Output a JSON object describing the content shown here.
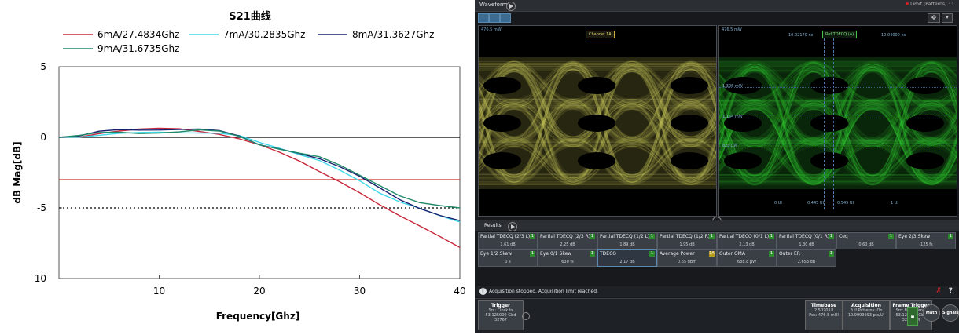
{
  "chart_data": {
    "type": "line",
    "title": "S21曲线",
    "xlabel": "Frequency[Ghz]",
    "ylabel": "dB Mag[dB]",
    "xlim": [
      0,
      40
    ],
    "ylim": [
      -10,
      5
    ],
    "x_ticks": [
      "10",
      "20",
      "30",
      "40"
    ],
    "y_ticks": [
      "5",
      "0",
      "-5",
      "-10"
    ],
    "ref_lines": [
      {
        "y": 0,
        "style": "solid",
        "color": "#000000"
      },
      {
        "y": -3,
        "style": "solid",
        "color": "#d03030"
      },
      {
        "y": -5,
        "style": "dotted",
        "color": "#000000"
      }
    ],
    "legend_position": "top",
    "series": [
      {
        "name": "6mA/27.4834Ghz",
        "color": "#c8283c",
        "x": [
          0,
          2,
          4,
          6,
          8,
          10,
          12,
          14,
          16,
          18,
          20,
          22,
          24,
          26,
          28,
          30,
          32,
          34,
          36,
          38,
          40
        ],
        "y": [
          0,
          0.05,
          0.3,
          0.45,
          0.55,
          0.6,
          0.6,
          0.45,
          0.25,
          -0.1,
          -0.55,
          -1.1,
          -1.7,
          -2.4,
          -3.1,
          -3.9,
          -4.8,
          -5.6,
          -6.3,
          -7.0,
          -7.8
        ]
      },
      {
        "name": "7mA/30.2835Ghz",
        "color": "#40d8e8",
        "x": [
          0,
          2,
          4,
          6,
          8,
          10,
          12,
          14,
          16,
          18,
          20,
          22,
          24,
          26,
          28,
          30,
          32,
          34,
          36,
          38,
          40
        ],
        "y": [
          0,
          0.05,
          0.15,
          0.25,
          0.3,
          0.35,
          0.35,
          0.35,
          0.3,
          0.1,
          -0.4,
          -0.8,
          -1.2,
          -1.6,
          -2.3,
          -3.1,
          -4.0,
          -4.6,
          -5.0,
          -5.5,
          -6.0
        ]
      },
      {
        "name": "8mA/31.3627Ghz",
        "color": "#1a1f6e",
        "x": [
          0,
          2,
          4,
          6,
          8,
          10,
          12,
          14,
          16,
          18,
          20,
          22,
          24,
          26,
          28,
          30,
          32,
          34,
          36,
          38,
          40
        ],
        "y": [
          0,
          0.1,
          0.4,
          0.5,
          0.5,
          0.55,
          0.6,
          0.6,
          0.45,
          0.05,
          -0.55,
          -0.8,
          -1.1,
          -1.5,
          -2.1,
          -2.8,
          -3.6,
          -4.4,
          -5.0,
          -5.5,
          -5.9
        ]
      },
      {
        "name": "9mA/31.6735Ghz",
        "color": "#1f8a6a",
        "x": [
          0,
          2,
          4,
          6,
          8,
          10,
          12,
          14,
          16,
          18,
          20,
          22,
          24,
          26,
          28,
          30,
          32,
          34,
          36,
          38,
          40
        ],
        "y": [
          0,
          0.1,
          0.3,
          0.35,
          0.3,
          0.35,
          0.4,
          0.5,
          0.4,
          0.05,
          -0.5,
          -0.8,
          -1.1,
          -1.4,
          -2.0,
          -2.7,
          -3.4,
          -4.1,
          -4.6,
          -4.85,
          -5.0
        ]
      }
    ]
  },
  "scope": {
    "window_title": "Waveform",
    "limit_status": "Limit (Patterns) : 1",
    "left_pane": {
      "scale_label": "476.5 mW",
      "channel_label": "Channel 1A"
    },
    "right_pane": {
      "scale_label": "476.5 mW",
      "marker_label": "Ref TDECQ (A)",
      "time_a": "10.02170 ns",
      "time_b": "10.04000 ns",
      "level_1": "1.306 mW",
      "level_2": "1.154 mW",
      "level_3": "820 µW",
      "axis_left": "0 UI",
      "axis_m1": "0.445 UI",
      "axis_m2": "0.545 UI",
      "axis_right": "1 UI"
    },
    "results_label": "Results",
    "results": [
      {
        "name": "Partial TDECQ (2/3 L)",
        "value": "1.61 dB",
        "badge": "1"
      },
      {
        "name": "Partial TDECQ (2/3 R)",
        "value": "2.25 dB",
        "badge": "1"
      },
      {
        "name": "Partial TDECQ (1/2 L)",
        "value": "1.89 dB",
        "badge": "1"
      },
      {
        "name": "Partial TDECQ (1/2 R)",
        "value": "1.95 dB",
        "badge": "1"
      },
      {
        "name": "Partial TDECQ (0/1 L)",
        "value": "2.13 dB",
        "badge": "1"
      },
      {
        "name": "Partial TDECQ (0/1 R)",
        "value": "1.30 dB",
        "badge": "1"
      },
      {
        "name": "Ceq",
        "value": "0.60 dB",
        "badge": "1"
      },
      {
        "name": "Eye 2/3 Skew",
        "value": "-125 fs",
        "badge": "1"
      },
      {
        "name": "Eye 1/2 Skew",
        "value": "0 s",
        "badge": "1"
      },
      {
        "name": "Eye 0/1 Skew",
        "value": "630 fs",
        "badge": "1"
      },
      {
        "name": "TDECQ",
        "value": "2.17 dB",
        "badge": "1"
      },
      {
        "name": "Average Power",
        "value": "0.65 dBm",
        "badge": "1A"
      },
      {
        "name": "Outer OMA",
        "value": "688.8 µW",
        "badge": "1"
      },
      {
        "name": "Outer ER",
        "value": "2.653 dB",
        "badge": "1"
      }
    ],
    "status_message": "Acquisition stopped. Acquisition limit reached.",
    "trigger": {
      "title": "Trigger",
      "lines": [
        "Src: Clock In",
        "53.125000 Gbd",
        "32767"
      ]
    },
    "timebase": {
      "title": "Timebase",
      "lines": [
        "2.5020 UI",
        "Pos: 476.5 mUI"
      ]
    },
    "acquisition": {
      "title": "Acquisition",
      "lines": [
        "Full Patterns: On",
        "10.9999993 pts/UI"
      ]
    },
    "frame_trigger": {
      "title": "Frame Trigger",
      "lines": [
        "Src: Front Panel",
        "53.125000 Gbd",
        "32767 UI"
      ]
    },
    "math_label": "Math",
    "signal_label": "Signals"
  }
}
